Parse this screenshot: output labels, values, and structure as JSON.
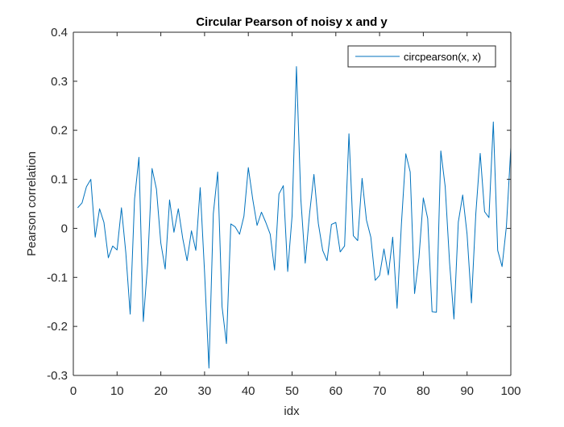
{
  "colors": {
    "series": "#0072BD",
    "axis": "#262626",
    "background": "#ffffff"
  },
  "chart_data": {
    "type": "line",
    "title": "Circular Pearson of noisy x and y",
    "xlabel": "idx",
    "ylabel": "Pearson correlation",
    "xlim": [
      0,
      100
    ],
    "ylim": [
      -0.3,
      0.4
    ],
    "xticks": [
      0,
      10,
      20,
      30,
      40,
      50,
      60,
      70,
      80,
      90,
      100
    ],
    "yticks": [
      -0.3,
      -0.2,
      -0.1,
      0,
      0.1,
      0.2,
      0.3,
      0.4
    ],
    "xtick_labels": [
      "0",
      "10",
      "20",
      "30",
      "40",
      "50",
      "60",
      "70",
      "80",
      "90",
      "100"
    ],
    "ytick_labels": [
      "-0.3",
      "-0.2",
      "-0.1",
      "0",
      "0.1",
      "0.2",
      "0.3",
      "0.4"
    ],
    "grid": false,
    "legend": {
      "position": "top-right",
      "entries": [
        "circpearson(x, x)"
      ]
    },
    "series": [
      {
        "name": "circpearson(x, x)",
        "x": [
          1,
          2,
          3,
          4,
          5,
          6,
          7,
          8,
          9,
          10,
          11,
          12,
          13,
          14,
          15,
          16,
          17,
          18,
          19,
          20,
          21,
          22,
          23,
          24,
          25,
          26,
          27,
          28,
          29,
          30,
          31,
          32,
          33,
          34,
          35,
          36,
          37,
          38,
          39,
          40,
          41,
          42,
          43,
          44,
          45,
          46,
          47,
          48,
          49,
          50,
          51,
          52,
          53,
          54,
          55,
          56,
          57,
          58,
          59,
          60,
          61,
          62,
          63,
          64,
          65,
          66,
          67,
          68,
          69,
          70,
          71,
          72,
          73,
          74,
          75,
          76,
          77,
          78,
          79,
          80,
          81,
          82,
          83,
          84,
          85,
          86,
          87,
          88,
          89,
          90,
          91,
          92,
          93,
          94,
          95,
          96,
          97,
          98,
          99,
          100
        ],
        "y": [
          0.042,
          0.052,
          0.085,
          0.1,
          -0.018,
          0.04,
          0.012,
          -0.06,
          -0.036,
          -0.044,
          0.042,
          -0.05,
          -0.175,
          0.06,
          0.145,
          -0.19,
          -0.07,
          0.122,
          0.08,
          -0.03,
          -0.083,
          0.058,
          -0.008,
          0.04,
          -0.02,
          -0.066,
          -0.005,
          -0.045,
          0.083,
          -0.09,
          -0.285,
          0.03,
          0.115,
          -0.16,
          -0.235,
          0.009,
          0.003,
          -0.012,
          0.025,
          0.124,
          0.06,
          0.006,
          0.033,
          0.012,
          -0.012,
          -0.085,
          0.07,
          0.087,
          -0.088,
          0.025,
          0.33,
          0.06,
          -0.071,
          0.03,
          0.11,
          0.01,
          -0.045,
          -0.066,
          0.008,
          0.012,
          -0.048,
          -0.036,
          0.193,
          -0.015,
          -0.025,
          0.102,
          0.017,
          -0.018,
          -0.106,
          -0.096,
          -0.042,
          -0.095,
          -0.018,
          -0.163,
          0.01,
          0.152,
          0.115,
          -0.133,
          -0.06,
          0.062,
          0.02,
          -0.17,
          -0.171,
          0.158,
          0.085,
          -0.07,
          -0.185,
          0.013,
          0.068,
          -0.012,
          -0.152,
          0.03,
          0.153,
          0.034,
          0.022,
          0.217,
          -0.045,
          -0.078,
          0.005,
          0.165
        ]
      }
    ]
  }
}
